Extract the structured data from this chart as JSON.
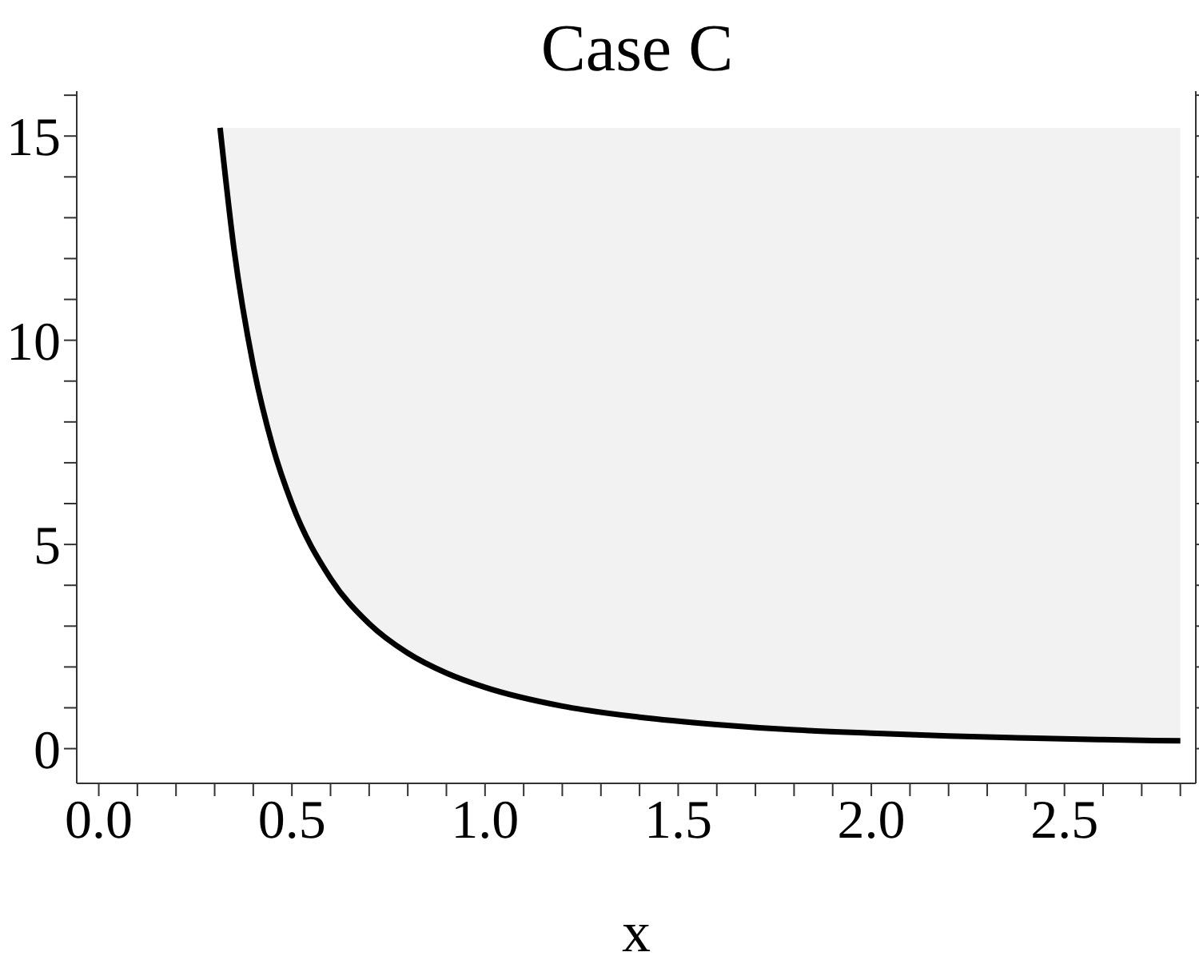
{
  "chart_data": {
    "type": "line",
    "title": "Case C",
    "xlabel": "x",
    "x": [
      0.314,
      0.35,
      0.4,
      0.45,
      0.5,
      0.6,
      0.7,
      0.8,
      0.9,
      1.0,
      1.2,
      1.4,
      1.6,
      1.8,
      2.0,
      2.2,
      2.4,
      2.6,
      2.8
    ],
    "series": [
      {
        "color": "#000000",
        "values": [
          15.2,
          12.24,
          9.38,
          7.41,
          6.0,
          4.17,
          3.06,
          2.34,
          1.85,
          1.5,
          1.04,
          0.77,
          0.59,
          0.46,
          0.38,
          0.31,
          0.26,
          0.22,
          0.19
        ],
        "lower": [
          15.2,
          12.24,
          9.38,
          7.41,
          6.0,
          4.17,
          3.06,
          2.34,
          1.85,
          1.5,
          1.04,
          0.77,
          0.59,
          0.46,
          0.38,
          0.31,
          0.26,
          0.22,
          0.19
        ],
        "upper": [
          15.2,
          15.2,
          15.2,
          15.2,
          15.2,
          15.2,
          15.2,
          15.2,
          15.2,
          15.2,
          15.2,
          15.2,
          15.2,
          15.2,
          15.2,
          15.2,
          15.2,
          15.2,
          15.2
        ]
      }
    ],
    "xlim": [
      -0.057,
      2.84
    ],
    "ylim": [
      -0.85,
      16.1
    ],
    "xticks": [
      {
        "value": 0,
        "label": "0.0"
      },
      {
        "value": 0.1,
        "label": null
      },
      {
        "value": 0.2,
        "label": null
      },
      {
        "value": 0.3,
        "label": null
      },
      {
        "value": 0.4,
        "label": null
      },
      {
        "value": 0.5,
        "label": "0.5"
      },
      {
        "value": 0.6,
        "label": null
      },
      {
        "value": 0.7,
        "label": null
      },
      {
        "value": 0.8,
        "label": null
      },
      {
        "value": 0.9,
        "label": null
      },
      {
        "value": 1,
        "label": "1.0"
      },
      {
        "value": 1.1,
        "label": null
      },
      {
        "value": 1.2,
        "label": null
      },
      {
        "value": 1.3,
        "label": null
      },
      {
        "value": 1.4,
        "label": null
      },
      {
        "value": 1.5,
        "label": "1.5"
      },
      {
        "value": 1.6,
        "label": null
      },
      {
        "value": 1.7,
        "label": null
      },
      {
        "value": 1.8,
        "label": null
      },
      {
        "value": 1.9,
        "label": null
      },
      {
        "value": 2,
        "label": "2.0"
      },
      {
        "value": 2.1,
        "label": null
      },
      {
        "value": 2.2,
        "label": null
      },
      {
        "value": 2.3,
        "label": null
      },
      {
        "value": 2.4,
        "label": null
      },
      {
        "value": 2.5,
        "label": "2.5"
      },
      {
        "value": 2.6,
        "label": null
      },
      {
        "value": 2.7,
        "label": null
      },
      {
        "value": 2.8,
        "label": null
      }
    ],
    "yticks": [
      0,
      {
        "value": 1,
        "label": null
      },
      {
        "value": 2,
        "label": null
      },
      {
        "value": 3,
        "label": null
      },
      {
        "value": 4,
        "label": null
      },
      5,
      {
        "value": 6,
        "label": null
      },
      {
        "value": 7,
        "label": null
      },
      {
        "value": 8,
        "label": null
      },
      {
        "value": 9,
        "label": null
      },
      10,
      {
        "value": 11,
        "label": null
      },
      {
        "value": 12,
        "label": null
      },
      {
        "value": 13,
        "label": null
      },
      {
        "value": 14,
        "label": null
      },
      15,
      {
        "value": 16,
        "label": null
      }
    ],
    "grid": false,
    "legend": false,
    "marker": "none",
    "line_style": "solid"
  }
}
